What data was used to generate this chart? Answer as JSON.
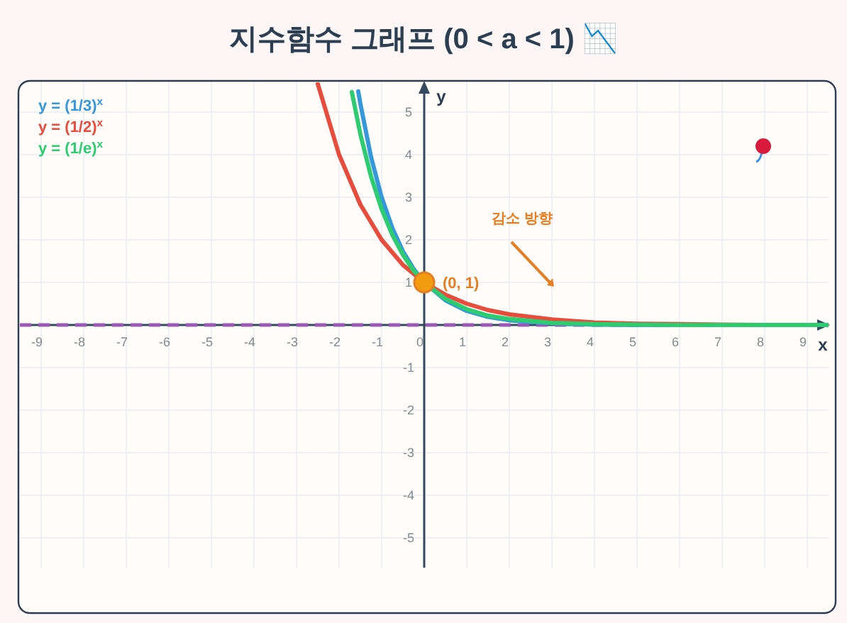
{
  "chart_data": {
    "type": "line",
    "title": "지수함수 그래프 (0 < a < 1) 📉",
    "xlabel": "x",
    "ylabel": "y",
    "xlim": [
      -9.5,
      9.5
    ],
    "ylim": [
      -5.7,
      5.7
    ],
    "xticks": [
      -9,
      -8,
      -7,
      -6,
      -5,
      -4,
      -3,
      -2,
      -1,
      0,
      1,
      2,
      3,
      4,
      5,
      6,
      7,
      8,
      9
    ],
    "yticks": [
      -5,
      -4,
      -3,
      -2,
      -1,
      1,
      2,
      3,
      4,
      5
    ],
    "grid": true,
    "legend": "top left",
    "marker": "none",
    "line_style": "solid",
    "series": [
      {
        "name": "y = (1/3)$^{x}$",
        "color": "#3498db",
        "x": [
          -1.55,
          -1.5,
          -1.25,
          -1,
          -0.75,
          -0.5,
          -0.25,
          0,
          0.5,
          1,
          1.5,
          2,
          3,
          4,
          5,
          9.5
        ],
        "values": [
          5.49,
          5.2,
          3.95,
          3,
          2.28,
          1.73,
          1.32,
          1,
          0.58,
          0.33,
          0.19,
          0.11,
          0.04,
          0.01,
          0,
          0
        ]
      },
      {
        "name": "y = (1/2)$^{x}$",
        "color": "#e74c3c",
        "x": [
          -2.5,
          -2,
          -1.5,
          -1,
          -0.5,
          0,
          0.5,
          1,
          1.5,
          2,
          3,
          4,
          5,
          6,
          7,
          8,
          9.5
        ],
        "values": [
          5.66,
          4,
          2.83,
          2,
          1.41,
          1,
          0.71,
          0.5,
          0.35,
          0.25,
          0.13,
          0.06,
          0.03,
          0.02,
          0.01,
          0,
          0
        ]
      },
      {
        "name": "y = (1/e)$^{x}$",
        "color": "#2ecc71",
        "x": [
          -1.7,
          -1.5,
          -1.25,
          -1,
          -0.75,
          -0.5,
          -0.25,
          0,
          0.5,
          1,
          1.5,
          2,
          3,
          4,
          5,
          6,
          9.5
        ],
        "values": [
          5.47,
          4.48,
          3.49,
          2.72,
          2.12,
          1.65,
          1.28,
          1,
          0.61,
          0.37,
          0.22,
          0.14,
          0.05,
          0.02,
          0.01,
          0,
          0
        ]
      },
      {
        "type": "scatter",
        "marker": "circle",
        "color": "#f39c12",
        "x": [
          0
        ],
        "values": [
          1
        ]
      }
    ],
    "ref_lines": [
      {
        "axis": "y",
        "value": 0,
        "color": "#9b59b6",
        "line_style": "dashed"
      }
    ],
    "annotations": [
      {
        "text": "(0, 1)",
        "x": 0,
        "y": 1
      },
      "감소 방향"
    ]
  }
}
